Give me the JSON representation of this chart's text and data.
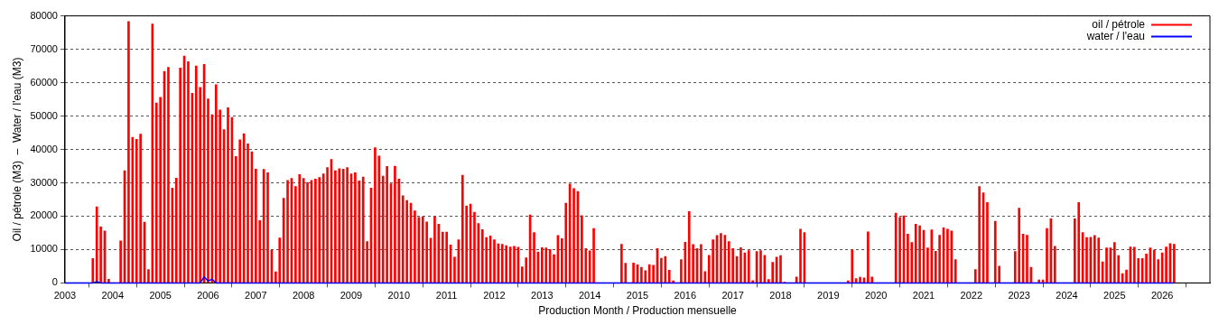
{
  "chart_data": {
    "type": "bar",
    "xlabel": "Production Month / Production mensuelle",
    "ylabel": "Oil / pétrole (M3)  –  Water / l'eau (M3)",
    "xlim": [
      "2003-01",
      "2027-01"
    ],
    "xticks": [
      "2003",
      "2004",
      "2005",
      "2006",
      "2007",
      "2008",
      "2009",
      "2010",
      "2011",
      "2012",
      "2013",
      "2014",
      "2015",
      "2016",
      "2017",
      "2018",
      "2019",
      "2020",
      "2021",
      "2022",
      "2023",
      "2024",
      "2025",
      "2026",
      {
        "value": "2027",
        "label": null
      }
    ],
    "ylim": [
      0,
      80000
    ],
    "yticks": [
      0,
      10000,
      20000,
      30000,
      40000,
      50000,
      60000,
      70000,
      80000
    ],
    "grid": "y",
    "legend": "top right",
    "x": [
      "2003-08",
      "2003-09",
      "2003-10",
      "2003-11",
      "2003-12",
      "2004-01",
      "2004-02",
      "2004-03",
      "2004-04",
      "2004-05",
      "2004-06",
      "2004-07",
      "2004-08",
      "2004-09",
      "2004-10",
      "2004-11",
      "2004-12",
      "2005-01",
      "2005-02",
      "2005-03",
      "2005-04",
      "2005-05",
      "2005-06",
      "2005-07",
      "2005-08",
      "2005-09",
      "2005-10",
      "2005-11",
      "2005-12",
      "2006-01",
      "2006-02",
      "2006-03",
      "2006-04",
      "2006-05",
      "2006-06",
      "2006-07",
      "2006-08",
      "2006-09",
      "2006-10",
      "2006-11",
      "2006-12",
      "2007-01",
      "2007-02",
      "2007-03",
      "2007-04",
      "2007-05",
      "2007-06",
      "2007-07",
      "2007-08",
      "2007-09",
      "2007-10",
      "2007-11",
      "2007-12",
      "2008-01",
      "2008-02",
      "2008-03",
      "2008-04",
      "2008-05",
      "2008-06",
      "2008-07",
      "2008-08",
      "2008-09",
      "2008-10",
      "2008-11",
      "2008-12",
      "2009-01",
      "2009-02",
      "2009-03",
      "2009-04",
      "2009-05",
      "2009-06",
      "2009-07",
      "2009-08",
      "2009-09",
      "2009-10",
      "2009-11",
      "2009-12",
      "2010-01",
      "2010-02",
      "2010-03",
      "2010-04",
      "2010-05",
      "2010-06",
      "2010-07",
      "2010-08",
      "2010-09",
      "2010-10",
      "2010-11",
      "2010-12",
      "2011-01",
      "2011-02",
      "2011-03",
      "2011-04",
      "2011-05",
      "2011-06",
      "2011-07",
      "2011-08",
      "2011-09",
      "2011-10",
      "2011-11",
      "2011-12",
      "2012-01",
      "2012-02",
      "2012-03",
      "2012-04",
      "2012-05",
      "2012-06",
      "2012-07",
      "2012-08",
      "2012-09",
      "2012-10",
      "2012-11",
      "2012-12",
      "2013-01",
      "2013-02",
      "2013-03",
      "2013-04",
      "2013-05",
      "2013-06",
      "2013-07",
      "2013-08",
      "2013-09",
      "2013-10",
      "2013-11",
      "2013-12",
      "2014-01",
      "2014-02",
      "2014-03",
      "2014-04",
      "2014-05",
      "2014-06",
      "2014-07",
      "2014-08",
      "2014-09",
      "2014-10",
      "2014-11",
      "2014-12",
      "2015-01",
      "2015-02",
      "2015-03",
      "2015-04",
      "2015-05",
      "2015-06",
      "2015-07",
      "2015-08",
      "2015-09",
      "2015-10",
      "2015-11",
      "2015-12",
      "2016-01",
      "2016-02",
      "2016-03",
      "2016-04",
      "2016-05",
      "2016-06",
      "2016-07",
      "2016-08",
      "2016-09",
      "2016-10",
      "2016-11",
      "2016-12",
      "2017-01",
      "2017-02",
      "2017-03",
      "2017-04",
      "2017-05",
      "2017-06",
      "2017-07",
      "2017-08",
      "2017-09",
      "2017-10",
      "2017-11",
      "2017-12",
      "2018-01",
      "2018-02",
      "2018-03",
      "2018-04",
      "2018-05",
      "2018-06",
      "2018-07",
      "2018-08",
      "2018-09",
      "2018-10",
      "2018-11",
      "2018-12",
      "2019-01",
      "2019-02",
      "2019-03",
      "2019-04",
      "2019-05",
      "2019-06",
      "2019-07",
      "2019-08",
      "2019-09",
      "2019-10",
      "2019-11",
      "2019-12",
      "2020-01",
      "2020-02",
      "2020-03",
      "2020-04",
      "2020-05",
      "2020-06",
      "2020-07",
      "2020-08",
      "2020-09",
      "2020-10",
      "2020-11",
      "2020-12",
      "2021-01",
      "2021-02",
      "2021-03",
      "2021-04",
      "2021-05",
      "2021-06",
      "2021-07",
      "2021-08",
      "2021-09",
      "2021-10",
      "2021-11",
      "2021-12",
      "2022-01",
      "2022-02",
      "2022-03",
      "2022-04",
      "2022-05",
      "2022-06",
      "2022-07",
      "2022-08",
      "2022-09",
      "2022-10",
      "2022-11",
      "2022-12",
      "2023-01",
      "2023-02",
      "2023-03",
      "2023-04",
      "2023-05",
      "2023-06",
      "2023-07",
      "2023-08",
      "2023-09",
      "2023-10",
      "2023-11",
      "2023-12",
      "2024-01",
      "2024-02",
      "2024-03",
      "2024-04",
      "2024-05",
      "2024-06",
      "2024-07",
      "2024-08",
      "2024-09",
      "2024-10",
      "2024-11",
      "2024-12",
      "2025-01",
      "2025-02",
      "2025-03",
      "2025-04",
      "2025-05",
      "2025-06",
      "2025-07",
      "2025-08",
      "2025-09",
      "2025-10",
      "2025-11",
      "2025-12",
      "2026-01",
      "2026-02",
      "2026-03",
      "2026-04"
    ],
    "series": [
      {
        "name": "oil / pétrole",
        "color": "#ff0000",
        "values": [
          7300,
          22800,
          16800,
          15600,
          1100,
          null,
          null,
          12600,
          33600,
          78300,
          43600,
          43000,
          44600,
          18200,
          4000,
          77600,
          53900,
          55600,
          63400,
          64600,
          28400,
          31400,
          64400,
          68000,
          66300,
          56800,
          65000,
          58600,
          65500,
          55100,
          50400,
          59400,
          51800,
          45900,
          52500,
          49600,
          37900,
          42900,
          44700,
          41700,
          39300,
          34100,
          18700,
          34000,
          33000,
          9900,
          3300,
          13500,
          25400,
          30700,
          31300,
          28900,
          32500,
          31300,
          30100,
          30700,
          31100,
          31600,
          32700,
          34600,
          37000,
          33600,
          34200,
          34100,
          34600,
          32700,
          33000,
          30600,
          31700,
          12400,
          28400,
          40500,
          38000,
          32000,
          34900,
          29700,
          35000,
          31100,
          26100,
          24700,
          23900,
          21600,
          19600,
          19800,
          18300,
          13400,
          19800,
          17600,
          15200,
          15200,
          11400,
          7700,
          12900,
          32300,
          23100,
          23600,
          21200,
          17800,
          16000,
          13600,
          14100,
          12900,
          11700,
          11600,
          11200,
          10800,
          11000,
          10700,
          4800,
          7500,
          20400,
          15100,
          9300,
          10600,
          10500,
          10000,
          8500,
          14200,
          13300,
          23900,
          29600,
          28300,
          27400,
          20200,
          10300,
          9600,
          16300,
          null,
          null,
          null,
          null,
          null,
          null,
          11600,
          5900,
          null,
          6000,
          5400,
          4700,
          3700,
          5500,
          5300,
          10300,
          7400,
          7900,
          3800,
          600,
          null,
          7000,
          12200,
          21400,
          11500,
          10300,
          11500,
          3400,
          8300,
          12900,
          14200,
          14800,
          14300,
          12400,
          10300,
          7900,
          10600,
          9000,
          9700,
          700,
          9400,
          9700,
          8300,
          1000,
          6200,
          7700,
          8200,
          200,
          null,
          null,
          1800,
          16100,
          15100,
          null,
          null,
          null,
          null,
          null,
          null,
          null,
          null,
          null,
          null,
          600,
          9900,
          1300,
          1700,
          1500,
          15300,
          1800,
          null,
          null,
          null,
          null,
          null,
          20900,
          19600,
          20100,
          14600,
          12100,
          17600,
          17100,
          15800,
          10500,
          15900,
          9500,
          14300,
          16500,
          16100,
          15600,
          7000,
          null,
          null,
          null,
          null,
          4000,
          28900,
          27000,
          24100,
          null,
          18500,
          5000,
          null,
          null,
          null,
          9400,
          22400,
          14600,
          14300,
          4700,
          null,
          900,
          900,
          16300,
          19200,
          11000,
          null,
          null,
          null,
          null,
          19200,
          24100,
          15100,
          13600,
          13700,
          14200,
          13500,
          6300,
          10500,
          10500,
          12100,
          8200,
          2800,
          3900,
          10800,
          10700,
          7300,
          7300,
          8700,
          10500,
          9800,
          7000,
          9000,
          10800,
          11800,
          11600
        ]
      },
      {
        "name": "water / l'eau",
        "type": "line",
        "color": "#0000ff",
        "x": [
          "2003-01",
          "2003-08",
          "2003-09",
          "2003-10",
          "2005-11",
          "2005-12",
          "2006-01",
          "2006-02",
          "2006-03",
          "2026-04"
        ],
        "values": [
          0,
          0,
          400,
          0,
          0,
          1800,
          600,
          1100,
          0,
          0
        ]
      }
    ]
  }
}
